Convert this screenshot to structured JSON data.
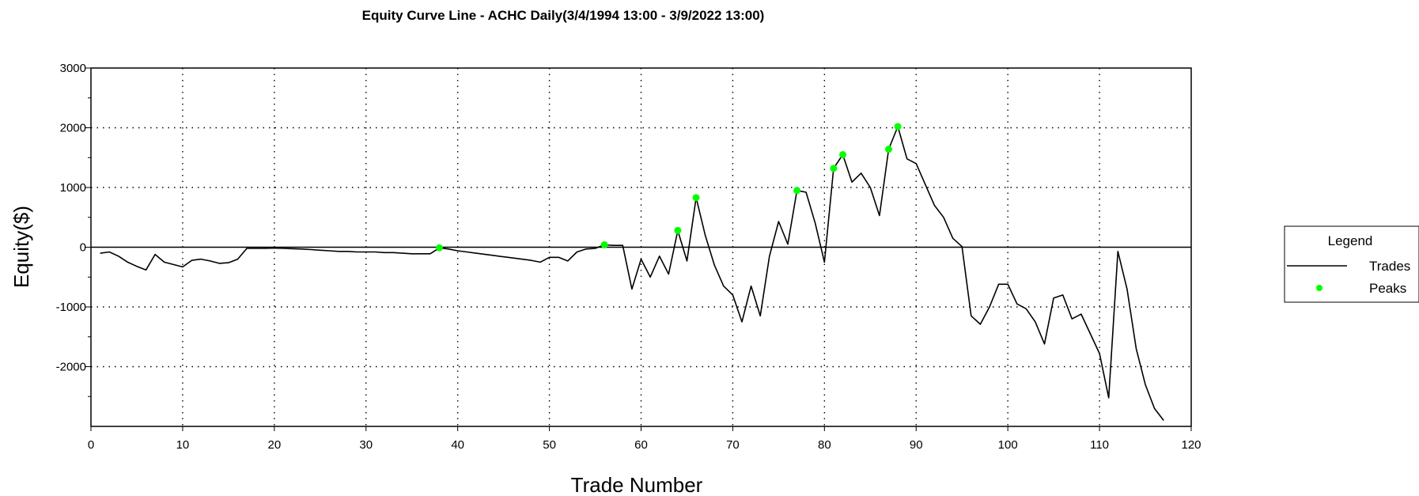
{
  "colors": {
    "line": "#000000",
    "peaks": "#00ff00",
    "grid": "#000000",
    "background": "#ffffff"
  },
  "chart_data": {
    "type": "line",
    "title": "Equity Curve Line - ACHC Daily(3/4/1994 13:00 - 3/9/2022 13:00)",
    "xlabel": "Trade Number",
    "ylabel": "Equity($)",
    "xlim": [
      0,
      120
    ],
    "ylim": [
      -3000,
      3000
    ],
    "xticks": [
      0,
      10,
      20,
      30,
      40,
      50,
      60,
      70,
      80,
      90,
      100,
      110,
      120
    ],
    "yticks": [
      -2000,
      -1000,
      0,
      1000,
      2000,
      3000
    ],
    "xtick_labels": [
      "0",
      "10",
      "20",
      "30",
      "40",
      "50",
      "60",
      "70",
      "80",
      "90",
      "100",
      "110",
      "120"
    ],
    "ytick_labels": [
      "-2000",
      "-1000",
      "0",
      "1000",
      "2000",
      "3000"
    ],
    "grid": true,
    "legend": {
      "title": "Legend",
      "placement": "right",
      "entries": [
        "Trades",
        "Peaks"
      ]
    },
    "series": [
      {
        "name": "Trades",
        "type": "line",
        "points": [
          [
            1,
            -100
          ],
          [
            2,
            -80
          ],
          [
            3,
            -150
          ],
          [
            4,
            -250
          ],
          [
            5,
            -320
          ],
          [
            6,
            -380
          ],
          [
            7,
            -120
          ],
          [
            8,
            -250
          ],
          [
            9,
            -290
          ],
          [
            10,
            -330
          ],
          [
            11,
            -220
          ],
          [
            12,
            -200
          ],
          [
            13,
            -230
          ],
          [
            14,
            -270
          ],
          [
            15,
            -260
          ],
          [
            16,
            -200
          ],
          [
            17,
            -20
          ],
          [
            18,
            -20
          ],
          [
            19,
            -20
          ],
          [
            20,
            -15
          ],
          [
            21,
            -20
          ],
          [
            22,
            -25
          ],
          [
            23,
            -30
          ],
          [
            24,
            -40
          ],
          [
            25,
            -50
          ],
          [
            26,
            -60
          ],
          [
            27,
            -70
          ],
          [
            28,
            -70
          ],
          [
            29,
            -80
          ],
          [
            30,
            -80
          ],
          [
            31,
            -80
          ],
          [
            32,
            -90
          ],
          [
            33,
            -90
          ],
          [
            34,
            -100
          ],
          [
            35,
            -110
          ],
          [
            36,
            -110
          ],
          [
            37,
            -110
          ],
          [
            38,
            -10
          ],
          [
            39,
            -30
          ],
          [
            40,
            -60
          ],
          [
            41,
            -80
          ],
          [
            42,
            -100
          ],
          [
            43,
            -120
          ],
          [
            44,
            -140
          ],
          [
            45,
            -160
          ],
          [
            46,
            -180
          ],
          [
            47,
            -200
          ],
          [
            48,
            -220
          ],
          [
            49,
            -250
          ],
          [
            50,
            -170
          ],
          [
            51,
            -170
          ],
          [
            52,
            -230
          ],
          [
            53,
            -80
          ],
          [
            54,
            -30
          ],
          [
            55,
            -20
          ],
          [
            56,
            40
          ],
          [
            57,
            30
          ],
          [
            58,
            30
          ],
          [
            59,
            -700
          ],
          [
            60,
            -200
          ],
          [
            61,
            -500
          ],
          [
            62,
            -150
          ],
          [
            63,
            -450
          ],
          [
            64,
            280
          ],
          [
            65,
            -230
          ],
          [
            66,
            830
          ],
          [
            67,
            200
          ],
          [
            68,
            -300
          ],
          [
            69,
            -650
          ],
          [
            70,
            -800
          ],
          [
            71,
            -1250
          ],
          [
            72,
            -650
          ],
          [
            73,
            -1150
          ],
          [
            74,
            -150
          ],
          [
            75,
            430
          ],
          [
            76,
            50
          ],
          [
            77,
            950
          ],
          [
            78,
            920
          ],
          [
            79,
            400
          ],
          [
            80,
            -250
          ],
          [
            81,
            1320
          ],
          [
            82,
            1550
          ],
          [
            83,
            1090
          ],
          [
            84,
            1240
          ],
          [
            85,
            1000
          ],
          [
            86,
            530
          ],
          [
            87,
            1640
          ],
          [
            88,
            2020
          ],
          [
            89,
            1480
          ],
          [
            90,
            1400
          ],
          [
            91,
            1050
          ],
          [
            92,
            700
          ],
          [
            93,
            500
          ],
          [
            94,
            150
          ],
          [
            95,
            10
          ],
          [
            96,
            -1150
          ],
          [
            97,
            -1290
          ],
          [
            98,
            -1000
          ],
          [
            99,
            -620
          ],
          [
            100,
            -620
          ],
          [
            101,
            -950
          ],
          [
            102,
            -1030
          ],
          [
            103,
            -1250
          ],
          [
            104,
            -1620
          ],
          [
            105,
            -850
          ],
          [
            106,
            -800
          ],
          [
            107,
            -1200
          ],
          [
            108,
            -1120
          ],
          [
            109,
            -1450
          ],
          [
            110,
            -1780
          ],
          [
            111,
            -2520
          ],
          [
            112,
            -70
          ],
          [
            113,
            -700
          ],
          [
            114,
            -1700
          ],
          [
            115,
            -2300
          ],
          [
            116,
            -2700
          ],
          [
            117,
            -2900
          ]
        ]
      },
      {
        "name": "Peaks",
        "type": "scatter",
        "points": [
          [
            38,
            -10
          ],
          [
            56,
            40
          ],
          [
            64,
            280
          ],
          [
            66,
            830
          ],
          [
            77,
            950
          ],
          [
            81,
            1320
          ],
          [
            82,
            1550
          ],
          [
            87,
            1640
          ],
          [
            88,
            2020
          ]
        ]
      }
    ]
  }
}
